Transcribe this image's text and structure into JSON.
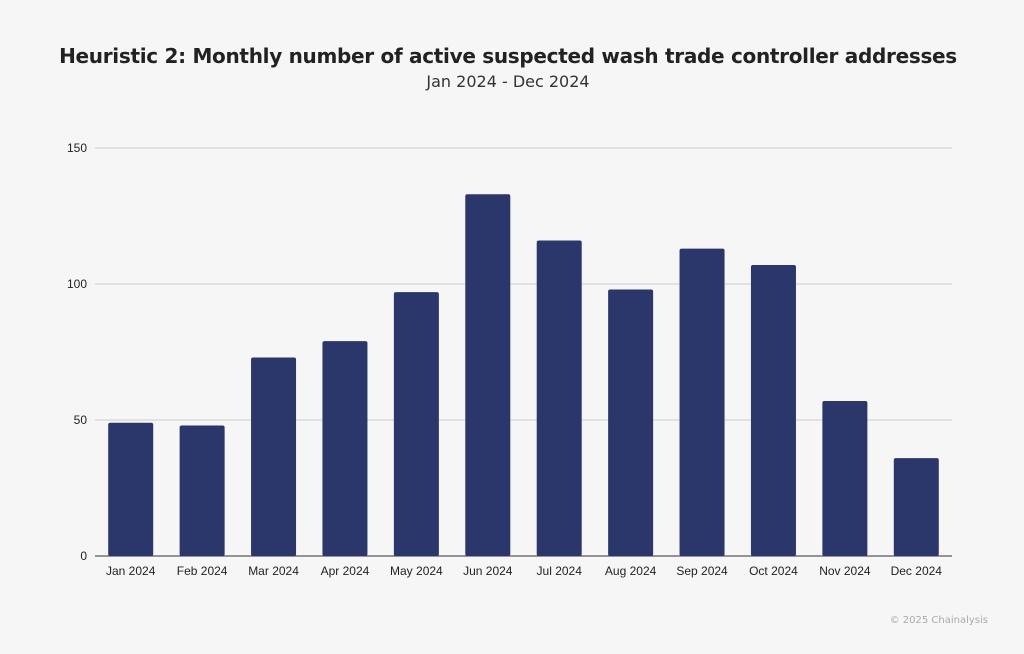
{
  "chart_data": {
    "type": "bar",
    "title": "Heuristic 2: Monthly number of active suspected wash trade controller addresses",
    "subtitle": "Jan 2024 - Dec 2024",
    "categories": [
      "Jan 2024",
      "Feb 2024",
      "Mar 2024",
      "Apr 2024",
      "May 2024",
      "Jun 2024",
      "Jul 2024",
      "Aug 2024",
      "Sep 2024",
      "Oct 2024",
      "Nov 2024",
      "Dec 2024"
    ],
    "values": [
      49,
      48,
      73,
      79,
      97,
      133,
      116,
      98,
      113,
      107,
      57,
      36
    ],
    "ylim": [
      0,
      150
    ],
    "yticks": [
      0,
      50,
      100,
      150
    ],
    "grid": true,
    "bar_color": "#2b376b",
    "xlabel": "",
    "ylabel": ""
  },
  "footer": {
    "credit": "© 2025 Chainalysis"
  }
}
